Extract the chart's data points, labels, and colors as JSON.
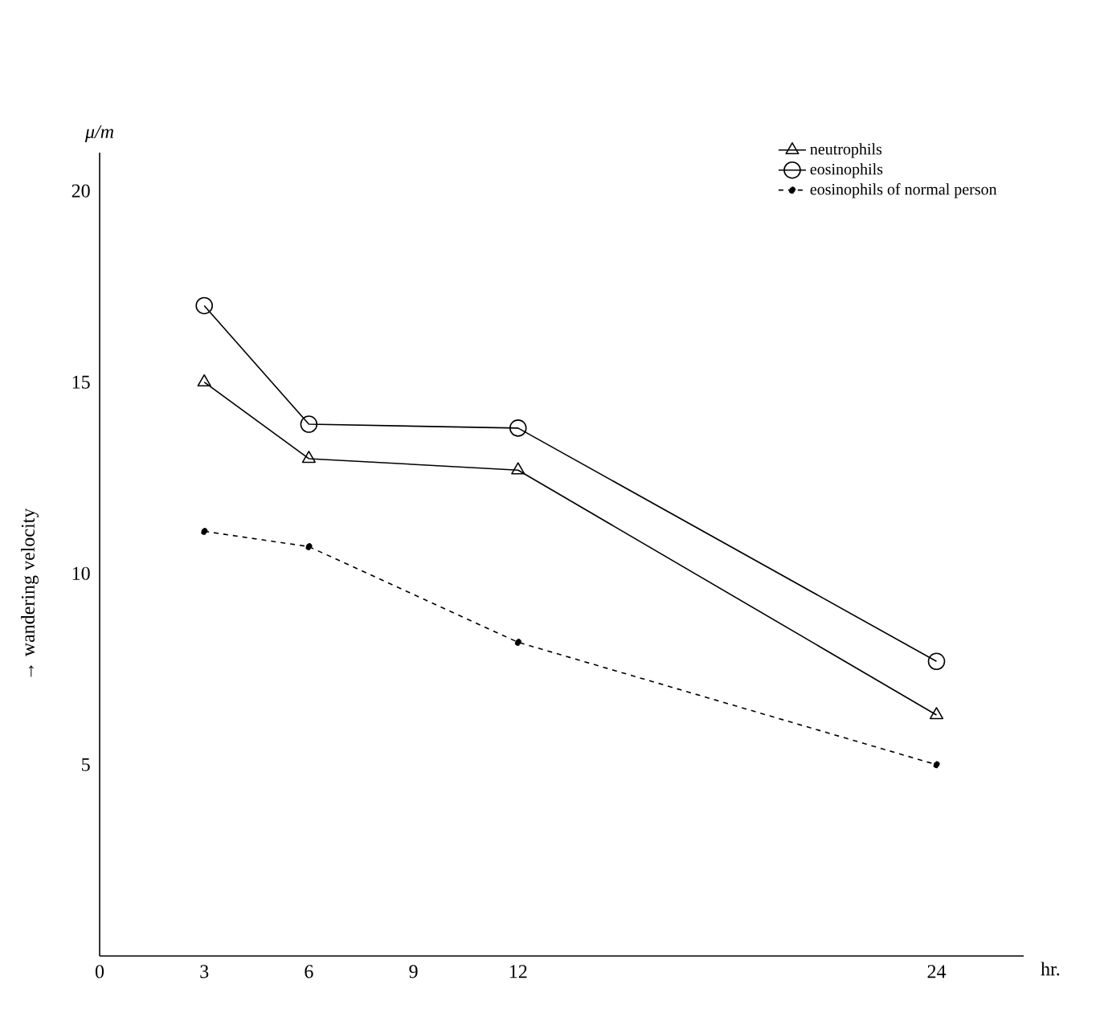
{
  "chart_data": {
    "type": "line",
    "xlabel": "hr.",
    "ylabel": "→ wandering velocity",
    "annotations": [
      "μ/m"
    ],
    "x": [
      3,
      6,
      12,
      24
    ],
    "series": [
      {
        "name": "neutrophils",
        "color": "#000000",
        "marker": "triangle",
        "line_style": "solid",
        "values": [
          15.0,
          13.0,
          12.7,
          6.3
        ]
      },
      {
        "name": "eosinophils",
        "color": "#000000",
        "marker": "circle",
        "line_style": "solid",
        "values": [
          17.0,
          13.9,
          13.8,
          7.7
        ]
      },
      {
        "name": "eosinophils of normal person",
        "color": "#000000",
        "marker": "circle",
        "line_style": "dashed",
        "values": [
          11.1,
          10.7,
          8.2,
          5.0
        ]
      }
    ],
    "xlim": [
      0,
      26.5
    ],
    "ylim": [
      0,
      21
    ],
    "xticks": [
      0,
      3,
      6,
      9,
      12,
      24
    ],
    "yticks": [
      5,
      10,
      15,
      20
    ],
    "grid": false,
    "legend": "top right"
  }
}
